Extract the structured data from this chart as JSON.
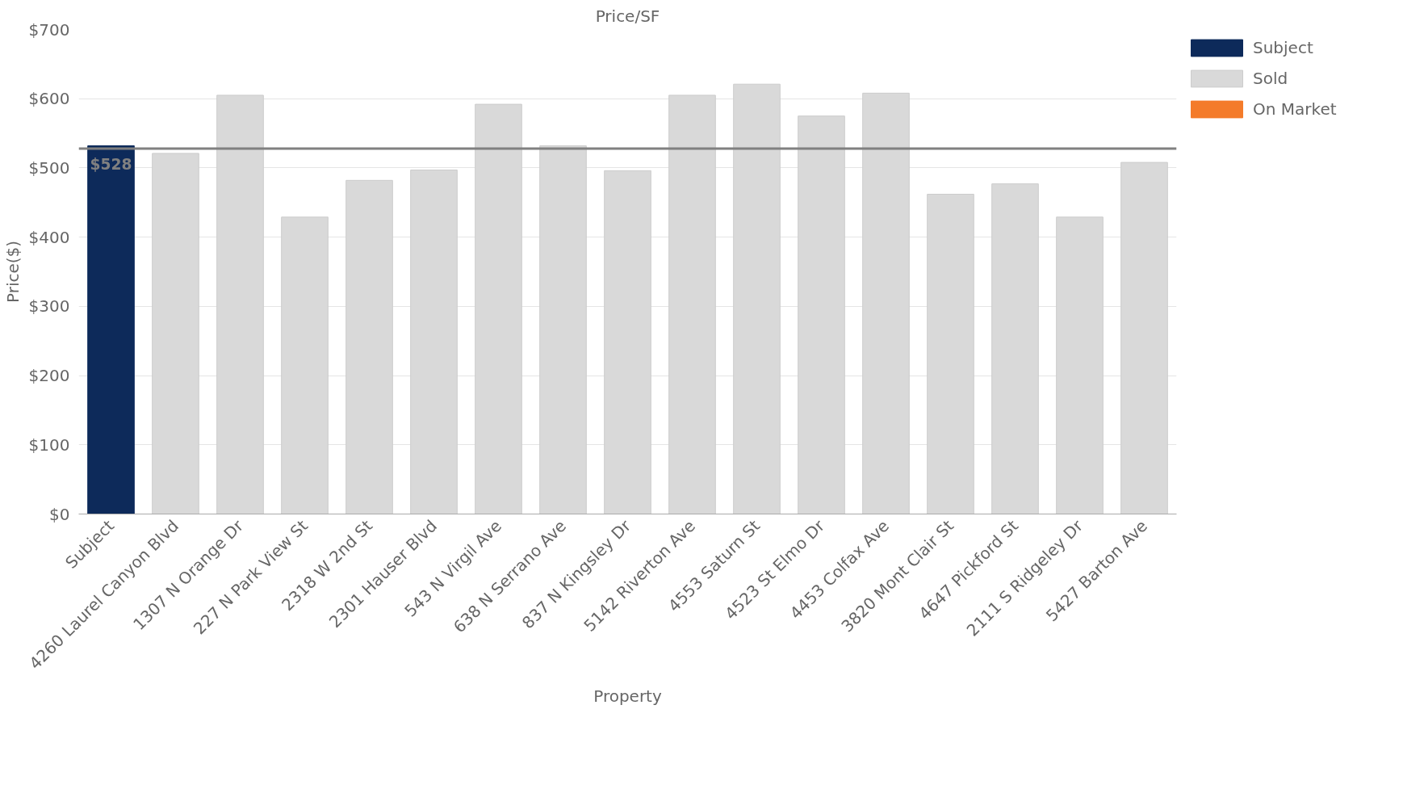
{
  "chart_data": {
    "type": "bar",
    "title": "Price/SF",
    "xlabel": "Property",
    "ylabel": "Price($)",
    "categories": [
      "Subject",
      "4260 Laurel Canyon Blvd",
      "1307 N Orange Dr",
      "227 N Park View St",
      "2318 W 2nd St",
      "2301 Hauser Blvd",
      "543 N Virgil Ave",
      "638 N Serrano Ave",
      "837 N Kingsley Dr",
      "5142 Riverton Ave",
      "4553 Saturn St",
      "4523 St Elmo Dr",
      "4453 Colfax Ave",
      "3820 Mont Clair St",
      "4647 Pickford St",
      "2111 S Ridgeley Dr",
      "5427 Barton Ave"
    ],
    "series": [
      {
        "name": "Subject",
        "color": "#0d2a5a",
        "values": [
          532,
          null,
          null,
          null,
          null,
          null,
          null,
          null,
          null,
          null,
          null,
          null,
          null,
          null,
          null,
          null,
          null
        ]
      },
      {
        "name": "Sold",
        "color": "#d9d9d9",
        "values": [
          null,
          521,
          605,
          429,
          482,
          497,
          592,
          532,
          496,
          605,
          621,
          575,
          608,
          462,
          477,
          429,
          508
        ]
      },
      {
        "name": "On Market",
        "color": "#f47b2a",
        "values": [
          null,
          null,
          null,
          null,
          null,
          null,
          null,
          null,
          null,
          null,
          null,
          null,
          null,
          null,
          null,
          null,
          null
        ]
      }
    ],
    "ylim": [
      0,
      700
    ],
    "yticks": [
      {
        "value": 0,
        "label": "$0"
      },
      {
        "value": 100,
        "label": "$100"
      },
      {
        "value": 200,
        "label": "$200"
      },
      {
        "value": 300,
        "label": "$300"
      },
      {
        "value": 400,
        "label": "$400"
      },
      {
        "value": 500,
        "label": "$500"
      },
      {
        "value": 600,
        "label": "$600"
      },
      {
        "value": 700,
        "label": "$700"
      }
    ],
    "ref_lines": [
      {
        "axis": "y",
        "value": 528,
        "label": "$528",
        "color": "#808080"
      }
    ],
    "grid": "y",
    "legend": "right"
  }
}
